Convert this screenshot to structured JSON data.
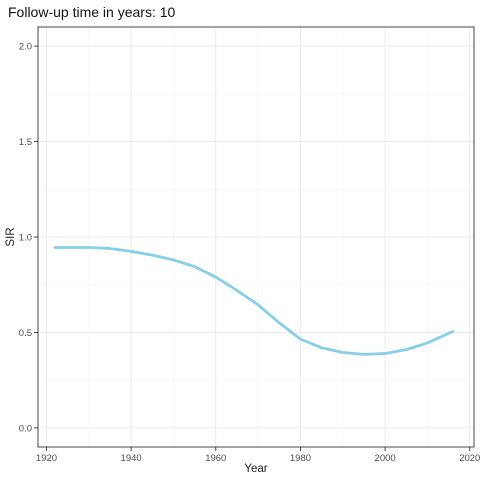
{
  "chart_data": {
    "type": "line",
    "title": "Follow-up time in years: 10",
    "xlabel": "Year",
    "ylabel": "SIR",
    "xlim": [
      1918,
      2021
    ],
    "ylim": [
      -0.1,
      2.1
    ],
    "x_ticks": [
      1920,
      1940,
      1960,
      1980,
      2000,
      2020
    ],
    "y_ticks": [
      0.0,
      0.5,
      1.0,
      1.5,
      2.0
    ],
    "y_tick_labels": [
      "0.0",
      "0.5",
      "1.0",
      "1.5",
      "2.0"
    ],
    "grid": true,
    "legend": "none",
    "series": [
      {
        "color": "#87CEEB",
        "x": [
          1922,
          1925,
          1930,
          1935,
          1940,
          1945,
          1950,
          1955,
          1960,
          1965,
          1970,
          1975,
          1980,
          1985,
          1990,
          1995,
          2000,
          2005,
          2010,
          2015,
          2016
        ],
        "y": [
          0.945,
          0.945,
          0.945,
          0.94,
          0.925,
          0.905,
          0.88,
          0.845,
          0.79,
          0.72,
          0.645,
          0.55,
          0.465,
          0.42,
          0.395,
          0.385,
          0.39,
          0.41,
          0.445,
          0.495,
          0.505
        ]
      }
    ]
  }
}
